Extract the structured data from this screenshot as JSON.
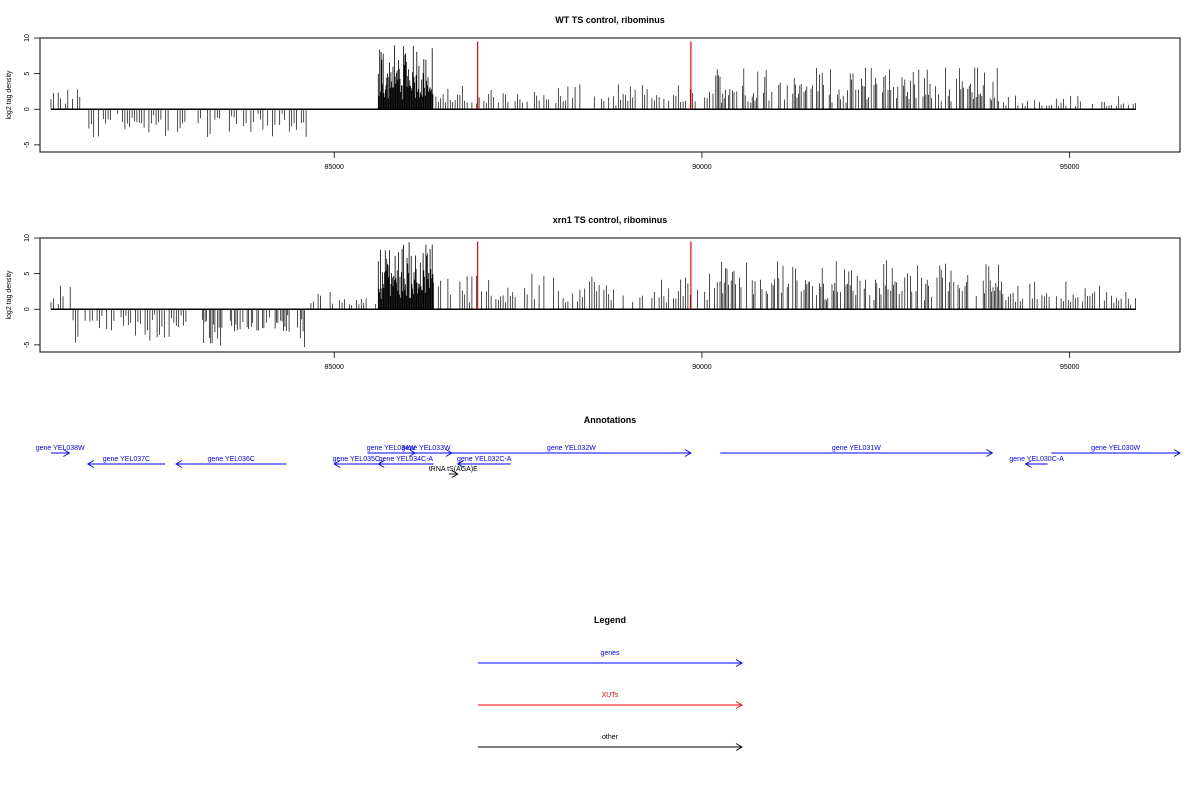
{
  "chart_data": {
    "type": "genome-track",
    "x_range": [
      81000,
      96500
    ],
    "panels": [
      {
        "title": "WT TS control, ribominus",
        "ylabel": "log2 tag density",
        "ylim": [
          -6,
          10
        ],
        "yticks": [
          "10",
          "5",
          "0",
          "-5"
        ],
        "xticks": [
          "85000",
          "90000",
          "95000"
        ],
        "signal_color": "#000000",
        "marker_color": "#ff0000",
        "xut_markers": [
          86950,
          89850
        ],
        "segments": [
          {
            "start": 81150,
            "end": 81600,
            "sign": "plus",
            "max": 3
          },
          {
            "start": 81600,
            "end": 83000,
            "sign": "minus",
            "max": 4.3
          },
          {
            "start": 83150,
            "end": 84650,
            "sign": "minus",
            "max": 4
          },
          {
            "start": 85600,
            "end": 86350,
            "sign": "plus",
            "max": 9
          },
          {
            "start": 86350,
            "end": 90150,
            "sign": "plus",
            "max": 3.5
          },
          {
            "start": 90150,
            "end": 94100,
            "sign": "plus",
            "max": 6
          },
          {
            "start": 94100,
            "end": 95900,
            "sign": "plus",
            "max": 2
          }
        ]
      },
      {
        "title": "xrn1 TS control, ribominus",
        "ylabel": "log2 tag density",
        "ylim": [
          -6,
          10
        ],
        "yticks": [
          "10",
          "5",
          "0",
          "-5"
        ],
        "xticks": [
          "85000",
          "90000",
          "95000"
        ],
        "signal_color": "#000000",
        "marker_color": "#ff0000",
        "xut_markers": [
          86950,
          89850
        ],
        "segments": [
          {
            "start": 81150,
            "end": 81450,
            "sign": "plus",
            "max": 3.5
          },
          {
            "start": 81450,
            "end": 83000,
            "sign": "minus",
            "max": 4.8
          },
          {
            "start": 83150,
            "end": 84650,
            "sign": "minus",
            "max": 5.5
          },
          {
            "start": 84650,
            "end": 85600,
            "sign": "plus",
            "max": 2.5
          },
          {
            "start": 85600,
            "end": 86350,
            "sign": "plus",
            "max": 9.5
          },
          {
            "start": 86350,
            "end": 90150,
            "sign": "plus",
            "max": 5
          },
          {
            "start": 90150,
            "end": 94100,
            "sign": "plus",
            "max": 7
          },
          {
            "start": 94100,
            "end": 95900,
            "sign": "plus",
            "max": 4
          }
        ]
      }
    ],
    "annotations": {
      "title": "Annotations",
      "features": [
        {
          "label": "gene YEL038W",
          "start": 81150,
          "end": 81400,
          "strand": "+",
          "row": 0,
          "color": "#0000ff"
        },
        {
          "label": "gene YEL037C",
          "start": 81650,
          "end": 82700,
          "strand": "-",
          "row": 1,
          "color": "#0000ff"
        },
        {
          "label": "gene YEL036C",
          "start": 82850,
          "end": 84350,
          "strand": "-",
          "row": 1,
          "color": "#0000ff"
        },
        {
          "label": "gene YEL035C",
          "start": 85000,
          "end": 85600,
          "strand": "-",
          "row": 1,
          "color": "#0000ff"
        },
        {
          "label": "gene YEL034W",
          "start": 85450,
          "end": 86100,
          "strand": "+",
          "row": 0,
          "color": "#0000ff"
        },
        {
          "label": "gene YEL034C-A",
          "start": 85600,
          "end": 86350,
          "strand": "-",
          "row": 1,
          "color": "#0000ff"
        },
        {
          "label": "gene YEL033W",
          "start": 85900,
          "end": 86600,
          "strand": "+",
          "row": 0,
          "color": "#0000ff"
        },
        {
          "label": "tRNA tS(AGA)E",
          "start": 86560,
          "end": 86680,
          "strand": "+",
          "row": 2,
          "color": "#000000"
        },
        {
          "label": "gene YEL032C-A",
          "start": 86680,
          "end": 87400,
          "strand": "-",
          "row": 1,
          "color": "#0000ff"
        },
        {
          "label": "gene YEL032W",
          "start": 86600,
          "end": 89850,
          "strand": "+",
          "row": 0,
          "color": "#0000ff"
        },
        {
          "label": "gene YEL031W",
          "start": 90250,
          "end": 93950,
          "strand": "+",
          "row": 0,
          "color": "#0000ff"
        },
        {
          "label": "gene YEL030C-A",
          "start": 94400,
          "end": 94700,
          "strand": "-",
          "row": 1,
          "color": "#0000ff"
        },
        {
          "label": "gene YEL030W",
          "start": 94750,
          "end": 96500,
          "strand": "+",
          "row": 0,
          "color": "#0000ff"
        }
      ]
    },
    "legend": {
      "title": "Legend",
      "entries": [
        {
          "label": "genes",
          "color": "#0000ff"
        },
        {
          "label": "XUTs",
          "color": "#ff0000"
        },
        {
          "label": "other",
          "color": "#000000"
        }
      ]
    }
  }
}
